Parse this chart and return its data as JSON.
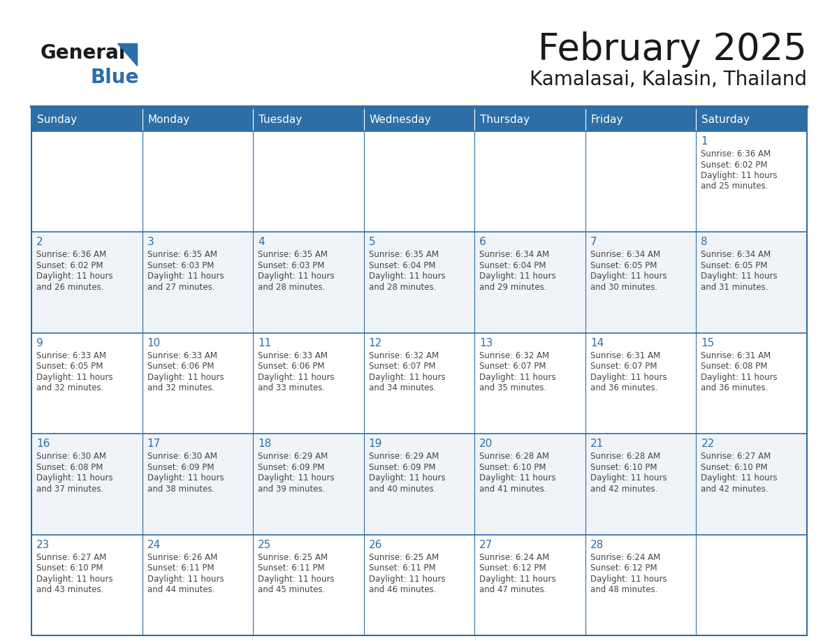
{
  "title": "February 2025",
  "subtitle": "Kamalasai, Kalasin, Thailand",
  "header_bg_color": "#2E6EA6",
  "header_text_color": "#FFFFFF",
  "cell_bg_even": "#FFFFFF",
  "cell_bg_odd": "#F0F4F8",
  "day_number_color": "#2E6EA6",
  "text_color": "#444444",
  "border_color": "#2E6EA6",
  "days_of_week": [
    "Sunday",
    "Monday",
    "Tuesday",
    "Wednesday",
    "Thursday",
    "Friday",
    "Saturday"
  ],
  "weeks": [
    [
      {
        "day": 0,
        "info": ""
      },
      {
        "day": 0,
        "info": ""
      },
      {
        "day": 0,
        "info": ""
      },
      {
        "day": 0,
        "info": ""
      },
      {
        "day": 0,
        "info": ""
      },
      {
        "day": 0,
        "info": ""
      },
      {
        "day": 1,
        "info": "Sunrise: 6:36 AM\nSunset: 6:02 PM\nDaylight: 11 hours\nand 25 minutes."
      }
    ],
    [
      {
        "day": 2,
        "info": "Sunrise: 6:36 AM\nSunset: 6:02 PM\nDaylight: 11 hours\nand 26 minutes."
      },
      {
        "day": 3,
        "info": "Sunrise: 6:35 AM\nSunset: 6:03 PM\nDaylight: 11 hours\nand 27 minutes."
      },
      {
        "day": 4,
        "info": "Sunrise: 6:35 AM\nSunset: 6:03 PM\nDaylight: 11 hours\nand 28 minutes."
      },
      {
        "day": 5,
        "info": "Sunrise: 6:35 AM\nSunset: 6:04 PM\nDaylight: 11 hours\nand 28 minutes."
      },
      {
        "day": 6,
        "info": "Sunrise: 6:34 AM\nSunset: 6:04 PM\nDaylight: 11 hours\nand 29 minutes."
      },
      {
        "day": 7,
        "info": "Sunrise: 6:34 AM\nSunset: 6:05 PM\nDaylight: 11 hours\nand 30 minutes."
      },
      {
        "day": 8,
        "info": "Sunrise: 6:34 AM\nSunset: 6:05 PM\nDaylight: 11 hours\nand 31 minutes."
      }
    ],
    [
      {
        "day": 9,
        "info": "Sunrise: 6:33 AM\nSunset: 6:05 PM\nDaylight: 11 hours\nand 32 minutes."
      },
      {
        "day": 10,
        "info": "Sunrise: 6:33 AM\nSunset: 6:06 PM\nDaylight: 11 hours\nand 32 minutes."
      },
      {
        "day": 11,
        "info": "Sunrise: 6:33 AM\nSunset: 6:06 PM\nDaylight: 11 hours\nand 33 minutes."
      },
      {
        "day": 12,
        "info": "Sunrise: 6:32 AM\nSunset: 6:07 PM\nDaylight: 11 hours\nand 34 minutes."
      },
      {
        "day": 13,
        "info": "Sunrise: 6:32 AM\nSunset: 6:07 PM\nDaylight: 11 hours\nand 35 minutes."
      },
      {
        "day": 14,
        "info": "Sunrise: 6:31 AM\nSunset: 6:07 PM\nDaylight: 11 hours\nand 36 minutes."
      },
      {
        "day": 15,
        "info": "Sunrise: 6:31 AM\nSunset: 6:08 PM\nDaylight: 11 hours\nand 36 minutes."
      }
    ],
    [
      {
        "day": 16,
        "info": "Sunrise: 6:30 AM\nSunset: 6:08 PM\nDaylight: 11 hours\nand 37 minutes."
      },
      {
        "day": 17,
        "info": "Sunrise: 6:30 AM\nSunset: 6:09 PM\nDaylight: 11 hours\nand 38 minutes."
      },
      {
        "day": 18,
        "info": "Sunrise: 6:29 AM\nSunset: 6:09 PM\nDaylight: 11 hours\nand 39 minutes."
      },
      {
        "day": 19,
        "info": "Sunrise: 6:29 AM\nSunset: 6:09 PM\nDaylight: 11 hours\nand 40 minutes."
      },
      {
        "day": 20,
        "info": "Sunrise: 6:28 AM\nSunset: 6:10 PM\nDaylight: 11 hours\nand 41 minutes."
      },
      {
        "day": 21,
        "info": "Sunrise: 6:28 AM\nSunset: 6:10 PM\nDaylight: 11 hours\nand 42 minutes."
      },
      {
        "day": 22,
        "info": "Sunrise: 6:27 AM\nSunset: 6:10 PM\nDaylight: 11 hours\nand 42 minutes."
      }
    ],
    [
      {
        "day": 23,
        "info": "Sunrise: 6:27 AM\nSunset: 6:10 PM\nDaylight: 11 hours\nand 43 minutes."
      },
      {
        "day": 24,
        "info": "Sunrise: 6:26 AM\nSunset: 6:11 PM\nDaylight: 11 hours\nand 44 minutes."
      },
      {
        "day": 25,
        "info": "Sunrise: 6:25 AM\nSunset: 6:11 PM\nDaylight: 11 hours\nand 45 minutes."
      },
      {
        "day": 26,
        "info": "Sunrise: 6:25 AM\nSunset: 6:11 PM\nDaylight: 11 hours\nand 46 minutes."
      },
      {
        "day": 27,
        "info": "Sunrise: 6:24 AM\nSunset: 6:12 PM\nDaylight: 11 hours\nand 47 minutes."
      },
      {
        "day": 28,
        "info": "Sunrise: 6:24 AM\nSunset: 6:12 PM\nDaylight: 11 hours\nand 48 minutes."
      },
      {
        "day": 0,
        "info": ""
      }
    ]
  ]
}
